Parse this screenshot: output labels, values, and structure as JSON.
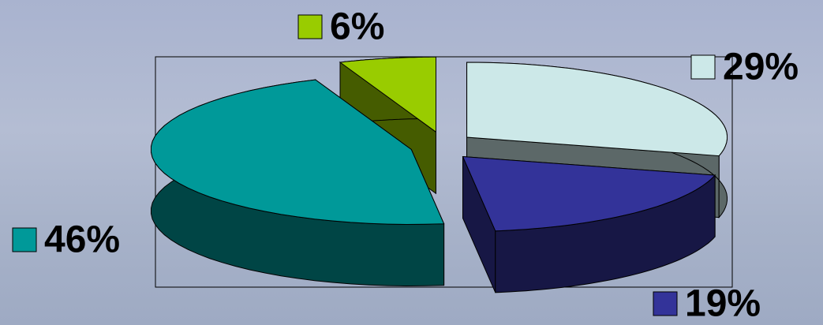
{
  "chart_data": {
    "type": "pie",
    "values": [
      6,
      29,
      19,
      46
    ],
    "value_labels": [
      "6%",
      "29%",
      "19%",
      "46%"
    ],
    "colors": [
      "#99cc00",
      "#cce8e8",
      "#333399",
      "#009999"
    ]
  }
}
